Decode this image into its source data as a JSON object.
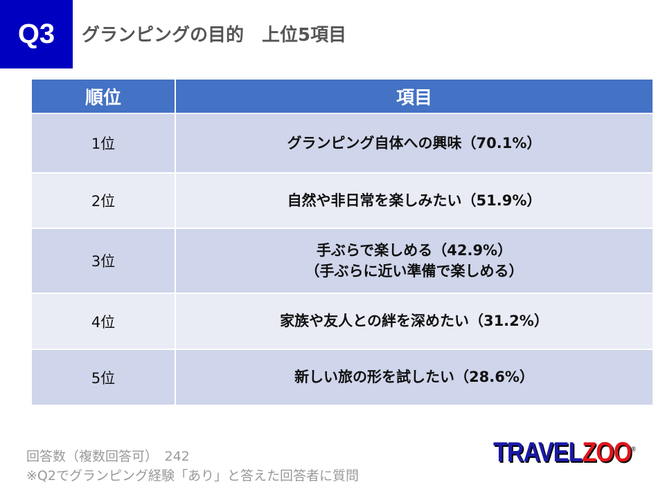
{
  "header": {
    "badge": "Q3",
    "title": "グランピングの目的　上位5項目"
  },
  "table": {
    "columns": [
      "順位",
      "項目"
    ],
    "rows": [
      {
        "rank": "1位",
        "item": "グランピング自体への興味（70.1%）",
        "item2": ""
      },
      {
        "rank": "2位",
        "item": "自然や非日常を楽しみたい（51.9%）",
        "item2": ""
      },
      {
        "rank": "3位",
        "item": "手ぶらで楽しめる（42.9%）",
        "item2": "（手ぶらに近い準備で楽しめる）"
      },
      {
        "rank": "4位",
        "item": "家族や友人との絆を深めたい（31.2%）",
        "item2": ""
      },
      {
        "rank": "5位",
        "item": "新しい旅の形を試したい（28.6%）",
        "item2": ""
      }
    ]
  },
  "footer": {
    "responses": "回答数（複数回答可）　242",
    "note": "※Q2でグランピング経験「あり」と答えた回答者に質問"
  },
  "logo": {
    "part1": "TRAVEL",
    "part2": "ZOO",
    "mark": "®"
  }
}
